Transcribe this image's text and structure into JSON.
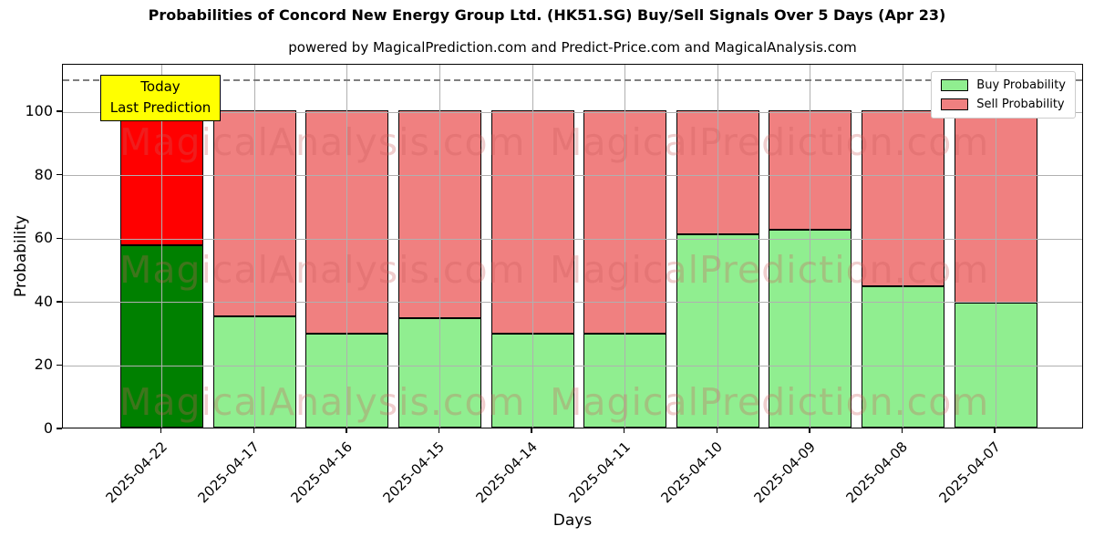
{
  "chart_data": {
    "type": "bar",
    "stacked": true,
    "title": "Probabilities of Concord New Energy Group Ltd. (HK51.SG) Buy/Sell Signals Over 5 Days (Apr 23)",
    "subtitle": "powered by MagicalPrediction.com and Predict-Price.com and MagicalAnalysis.com",
    "xlabel": "Days",
    "ylabel": "Probability",
    "ylim": [
      0,
      115
    ],
    "yticks": [
      0,
      20,
      40,
      60,
      80,
      100
    ],
    "grid": true,
    "dashed_line_y": 110,
    "categories": [
      "2025-04-22",
      "2025-04-17",
      "2025-04-16",
      "2025-04-15",
      "2025-04-14",
      "2025-04-11",
      "2025-04-10",
      "2025-04-09",
      "2025-04-08",
      "2025-04-07"
    ],
    "series": [
      {
        "name": "Buy Probability",
        "color": "#90ee90",
        "values": [
          57.5,
          35,
          29.5,
          34.5,
          29.5,
          29.5,
          61,
          62.5,
          44.5,
          39.5
        ]
      },
      {
        "name": "Sell Probability",
        "color": "#f08080",
        "values": [
          42.5,
          65,
          70.5,
          65.5,
          70.5,
          70.5,
          39,
          37.5,
          55.5,
          60.5
        ]
      }
    ],
    "today_bar": {
      "category": "2025-04-22",
      "index": 0,
      "buy_color": "#008000",
      "sell_color": "#ff0000"
    },
    "annotation": {
      "lines": [
        "Today",
        "Last Prediction"
      ],
      "bg": "#ffff00"
    },
    "legend": {
      "position": "upper right"
    },
    "watermarks": [
      "MagicalAnalysis.com",
      "MagicalPrediction.com"
    ],
    "colors": {
      "edge": "#000000",
      "grid": "#b0b0b0",
      "dashed_line": "#7f7f7f",
      "watermark": "rgba(205,92,92,0.30)"
    }
  }
}
